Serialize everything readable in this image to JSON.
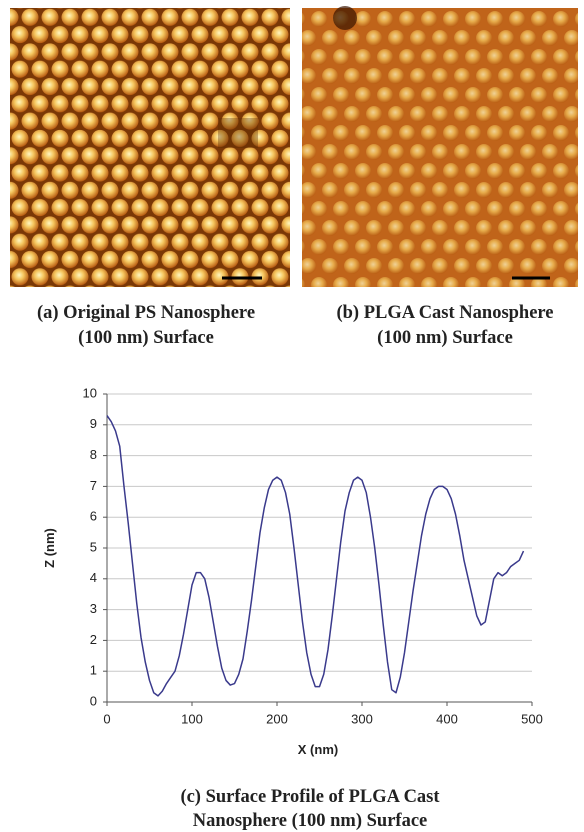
{
  "panels": [
    {
      "caption": [
        "(a) Original PS Nanosphere",
        "(100 nm) Surface"
      ]
    },
    {
      "caption": [
        "(b) PLGA Cast Nanosphere",
        "(100 nm) Surface"
      ]
    }
  ],
  "caption": [
    "(c) Surface Profile of PLGA Cast",
    "Nanosphere (100 nm) Surface"
  ],
  "chart_data": {
    "type": "line",
    "xlabel": "X (nm)",
    "ylabel": "Z (nm)",
    "color": "#3a3a8c",
    "grid": true,
    "xlim": [
      0,
      500
    ],
    "xticks": [
      0,
      100,
      200,
      300,
      400,
      500
    ],
    "ylim": [
      0,
      10
    ],
    "yticks": [
      0,
      1,
      2,
      3,
      4,
      5,
      6,
      7,
      8,
      9,
      10
    ],
    "x": [
      0,
      5,
      10,
      15,
      20,
      25,
      30,
      35,
      40,
      45,
      50,
      55,
      60,
      65,
      70,
      75,
      80,
      85,
      90,
      95,
      100,
      105,
      110,
      115,
      120,
      125,
      130,
      135,
      140,
      145,
      150,
      155,
      160,
      165,
      170,
      175,
      180,
      185,
      190,
      195,
      200,
      205,
      210,
      215,
      220,
      225,
      230,
      235,
      240,
      245,
      250,
      255,
      260,
      265,
      270,
      275,
      280,
      285,
      290,
      295,
      300,
      305,
      310,
      315,
      320,
      325,
      330,
      335,
      340,
      345,
      350,
      355,
      360,
      365,
      370,
      375,
      380,
      385,
      390,
      395,
      400,
      405,
      410,
      415,
      420,
      425,
      430,
      435,
      440,
      445,
      450,
      455,
      460,
      465,
      470,
      475,
      480,
      485,
      490
    ],
    "values": [
      9.3,
      9.1,
      8.8,
      8.3,
      7.0,
      5.8,
      4.5,
      3.2,
      2.1,
      1.3,
      0.7,
      0.3,
      0.2,
      0.35,
      0.6,
      0.8,
      1.0,
      1.5,
      2.2,
      3.0,
      3.8,
      4.2,
      4.2,
      4.0,
      3.4,
      2.6,
      1.8,
      1.1,
      0.7,
      0.55,
      0.6,
      0.9,
      1.4,
      2.3,
      3.3,
      4.4,
      5.5,
      6.3,
      6.9,
      7.2,
      7.3,
      7.2,
      6.8,
      6.1,
      5.0,
      3.8,
      2.6,
      1.6,
      0.9,
      0.5,
      0.5,
      0.9,
      1.7,
      2.8,
      4.0,
      5.2,
      6.2,
      6.8,
      7.2,
      7.3,
      7.2,
      6.8,
      6.0,
      5.0,
      3.8,
      2.5,
      1.3,
      0.4,
      0.3,
      0.8,
      1.6,
      2.6,
      3.6,
      4.5,
      5.4,
      6.1,
      6.6,
      6.9,
      7.0,
      7.0,
      6.9,
      6.6,
      6.1,
      5.4,
      4.6,
      4.0,
      3.4,
      2.8,
      2.5,
      2.6,
      3.3,
      4.0,
      4.2,
      4.1,
      4.2,
      4.4,
      4.5,
      4.6,
      4.9
    ]
  }
}
